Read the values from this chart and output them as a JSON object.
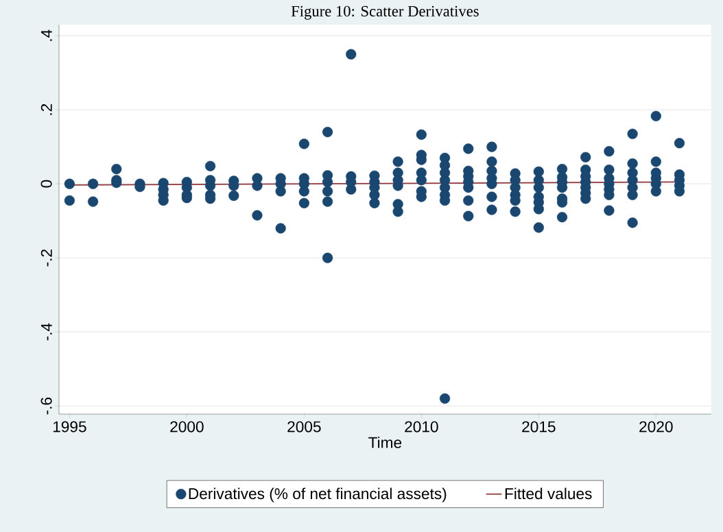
{
  "chart_data": {
    "type": "scatter",
    "title": "Figure 10: Scatter Derivatives",
    "xlabel": "Time",
    "xlim": [
      1994.55,
      2022.35
    ],
    "ylim": [
      -0.622,
      0.43
    ],
    "xticks": [
      1995,
      2000,
      2005,
      2010,
      2015,
      2020
    ],
    "yticks": [
      {
        "value": 0.4,
        "label": ".4"
      },
      {
        "value": 0.2,
        "label": ".2"
      },
      {
        "value": 0,
        "label": "0"
      },
      {
        "value": -0.2,
        "label": "-.2"
      },
      {
        "value": -0.4,
        "label": "-.4"
      },
      {
        "value": -0.6,
        "label": "-.6"
      }
    ],
    "grid": "y",
    "legend": "bottom",
    "marker": "circle",
    "series": [
      {
        "name": "Derivatives (% of net financial assets)",
        "color": "#1a476f",
        "x": [
          1995,
          1995,
          1996,
          1996,
          1997,
          1997,
          1997,
          1998,
          1998,
          1999,
          1999,
          1999,
          1999,
          2000,
          2000,
          2000,
          2000,
          2001,
          2001,
          2001,
          2001,
          2001,
          2002,
          2002,
          2002,
          2003,
          2003,
          2003,
          2004,
          2004,
          2004,
          2004,
          2005,
          2005,
          2005,
          2005,
          2005,
          2006,
          2006,
          2006,
          2006,
          2006,
          2006,
          2007,
          2007,
          2007,
          2007,
          2008,
          2008,
          2008,
          2008,
          2008,
          2009,
          2009,
          2009,
          2009,
          2009,
          2009,
          2010,
          2010,
          2010,
          2010,
          2010,
          2010,
          2010,
          2011,
          2011,
          2011,
          2011,
          2011,
          2011,
          2011,
          2011,
          2012,
          2012,
          2012,
          2012,
          2012,
          2012,
          2012,
          2013,
          2013,
          2013,
          2013,
          2013,
          2013,
          2013,
          2014,
          2014,
          2014,
          2014,
          2014,
          2014,
          2015,
          2015,
          2015,
          2015,
          2015,
          2015,
          2015,
          2016,
          2016,
          2016,
          2016,
          2016,
          2016,
          2016,
          2017,
          2017,
          2017,
          2017,
          2017,
          2017,
          2017,
          2018,
          2018,
          2018,
          2018,
          2018,
          2018,
          2018,
          2019,
          2019,
          2019,
          2019,
          2019,
          2019,
          2019,
          2020,
          2020,
          2020,
          2020,
          2020,
          2020,
          2021,
          2021,
          2021,
          2021,
          2021
        ],
        "values": [
          0,
          -0.045,
          0,
          -0.048,
          0.04,
          0.01,
          0.003,
          0,
          -0.008,
          0.002,
          -0.015,
          -0.03,
          -0.045,
          0.005,
          -0.01,
          -0.03,
          -0.038,
          0.048,
          0.01,
          -0.005,
          -0.03,
          -0.04,
          0.008,
          -0.005,
          -0.032,
          0.015,
          -0.005,
          -0.085,
          0.015,
          0,
          -0.02,
          -0.12,
          0.108,
          0.015,
          0,
          -0.02,
          -0.052,
          0.14,
          0.023,
          0.005,
          -0.02,
          -0.048,
          -0.2,
          0.35,
          0.02,
          0.005,
          -0.015,
          0.022,
          0.005,
          -0.01,
          -0.03,
          -0.052,
          0.06,
          0.03,
          0.01,
          -0.005,
          -0.055,
          -0.075,
          0.133,
          0.078,
          0.065,
          0.03,
          0.01,
          -0.02,
          -0.035,
          0.07,
          0.05,
          0.03,
          0.01,
          -0.01,
          -0.03,
          -0.045,
          -0.58,
          0.095,
          0.035,
          0.02,
          0.005,
          -0.01,
          -0.045,
          -0.087,
          0.1,
          0.06,
          0.035,
          0.015,
          0,
          -0.035,
          -0.07,
          0.028,
          0.01,
          -0.01,
          -0.03,
          -0.045,
          -0.075,
          0.033,
          0.01,
          -0.01,
          -0.035,
          -0.05,
          -0.068,
          -0.118,
          0.04,
          0.018,
          0.005,
          -0.01,
          -0.04,
          -0.05,
          -0.09,
          0.072,
          0.038,
          0.02,
          0.005,
          -0.01,
          -0.025,
          -0.04,
          0.088,
          0.038,
          0.015,
          0,
          -0.015,
          -0.03,
          -0.072,
          0.135,
          0.055,
          0.03,
          0.01,
          -0.01,
          -0.03,
          -0.105,
          0.183,
          0.06,
          0.03,
          0.015,
          0,
          -0.02,
          0.11,
          0.025,
          0.01,
          -0.005,
          -0.02
        ]
      },
      {
        "name": "Fitted values",
        "color": "#90353b",
        "type": "line",
        "marker": "none",
        "x": [
          1995,
          2021
        ],
        "values": [
          -0.003,
          0.005
        ]
      }
    ]
  }
}
